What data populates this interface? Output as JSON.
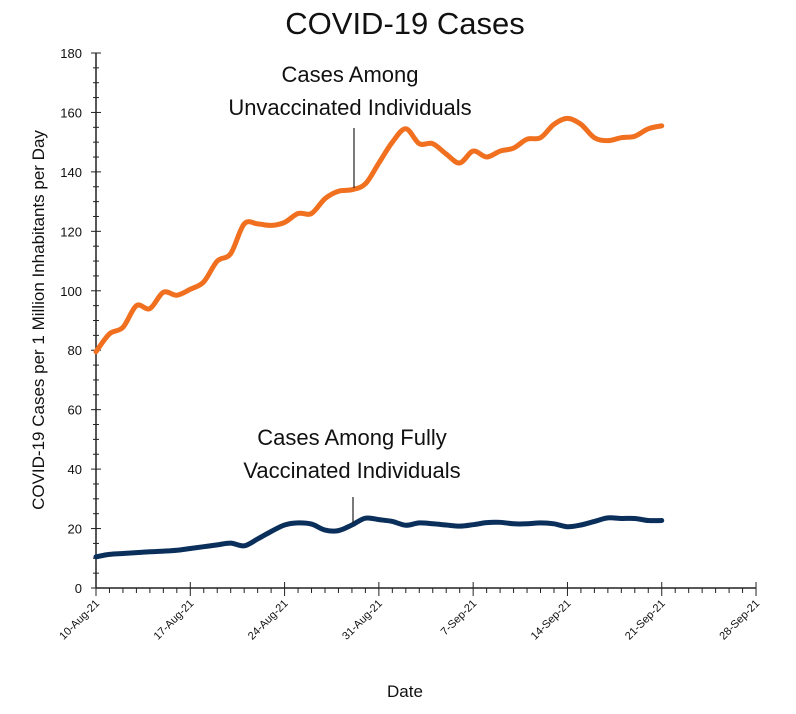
{
  "chart_data": {
    "type": "line",
    "title": "COVID-19 Cases",
    "xlabel": "Date",
    "ylabel": "COVID-19 Cases per 1 Million Inhabitants per Day",
    "ylim": [
      0,
      180
    ],
    "yticks": [
      0,
      20,
      40,
      60,
      80,
      100,
      120,
      140,
      160,
      180
    ],
    "xlim": [
      "2021-08-10",
      "2021-09-28"
    ],
    "xtick_labels": [
      "10-Aug-21",
      "17-Aug-21",
      "24-Aug-21",
      "31-Aug-21",
      "7-Sep-21",
      "14-Sep-21",
      "21-Sep-21",
      "28-Sep-21"
    ],
    "grid": false,
    "x": [
      "2021-08-10",
      "2021-08-11",
      "2021-08-12",
      "2021-08-13",
      "2021-08-14",
      "2021-08-15",
      "2021-08-16",
      "2021-08-17",
      "2021-08-18",
      "2021-08-19",
      "2021-08-20",
      "2021-08-21",
      "2021-08-22",
      "2021-08-23",
      "2021-08-24",
      "2021-08-25",
      "2021-08-26",
      "2021-08-27",
      "2021-08-28",
      "2021-08-29",
      "2021-08-30",
      "2021-08-31",
      "2021-09-01",
      "2021-09-02",
      "2021-09-03",
      "2021-09-04",
      "2021-09-05",
      "2021-09-06",
      "2021-09-07",
      "2021-09-08",
      "2021-09-09",
      "2021-09-10",
      "2021-09-11",
      "2021-09-12",
      "2021-09-13",
      "2021-09-14",
      "2021-09-15",
      "2021-09-16",
      "2021-09-17",
      "2021-09-18",
      "2021-09-19",
      "2021-09-20",
      "2021-09-21"
    ],
    "series": [
      {
        "name": "Cases Among Unvaccinated Individuals",
        "color": "#F07020",
        "values": [
          79.5,
          85.5,
          87.7,
          95,
          94,
          99.5,
          98.5,
          100.5,
          103,
          110,
          112.5,
          122.5,
          122.5,
          122,
          123,
          126,
          126,
          131,
          133.5,
          134,
          136,
          143,
          150,
          154.5,
          149.5,
          149.5,
          146,
          143,
          147,
          145,
          147,
          148,
          151,
          151.5,
          156,
          158,
          156,
          151.5,
          150.5,
          151.5,
          152,
          154.5,
          155.5
        ]
      },
      {
        "name": "Cases Among Fully Vaccinated Individuals",
        "color": "#0B2F5B",
        "values": [
          10.5,
          11.3,
          11.6,
          11.9,
          12.2,
          12.4,
          12.7,
          13.3,
          13.9,
          14.5,
          15.1,
          14.2,
          16.5,
          19,
          21.2,
          21.9,
          21.5,
          19.5,
          19.3,
          21.2,
          23.5,
          23,
          22.4,
          21.1,
          21.9,
          21.6,
          21.2,
          20.8,
          21.3,
          22,
          22.1,
          21.6,
          21.6,
          21.9,
          21.6,
          20.6,
          21.2,
          22.4,
          23.6,
          23.4,
          23.4,
          22.7,
          22.7
        ]
      }
    ],
    "annotations": [
      {
        "lines": [
          "Cases Among",
          "Unvaccinated Individuals"
        ],
        "series": 0
      },
      {
        "lines": [
          "Cases Among Fully",
          "Vaccinated Individuals"
        ],
        "series": 1
      }
    ]
  }
}
